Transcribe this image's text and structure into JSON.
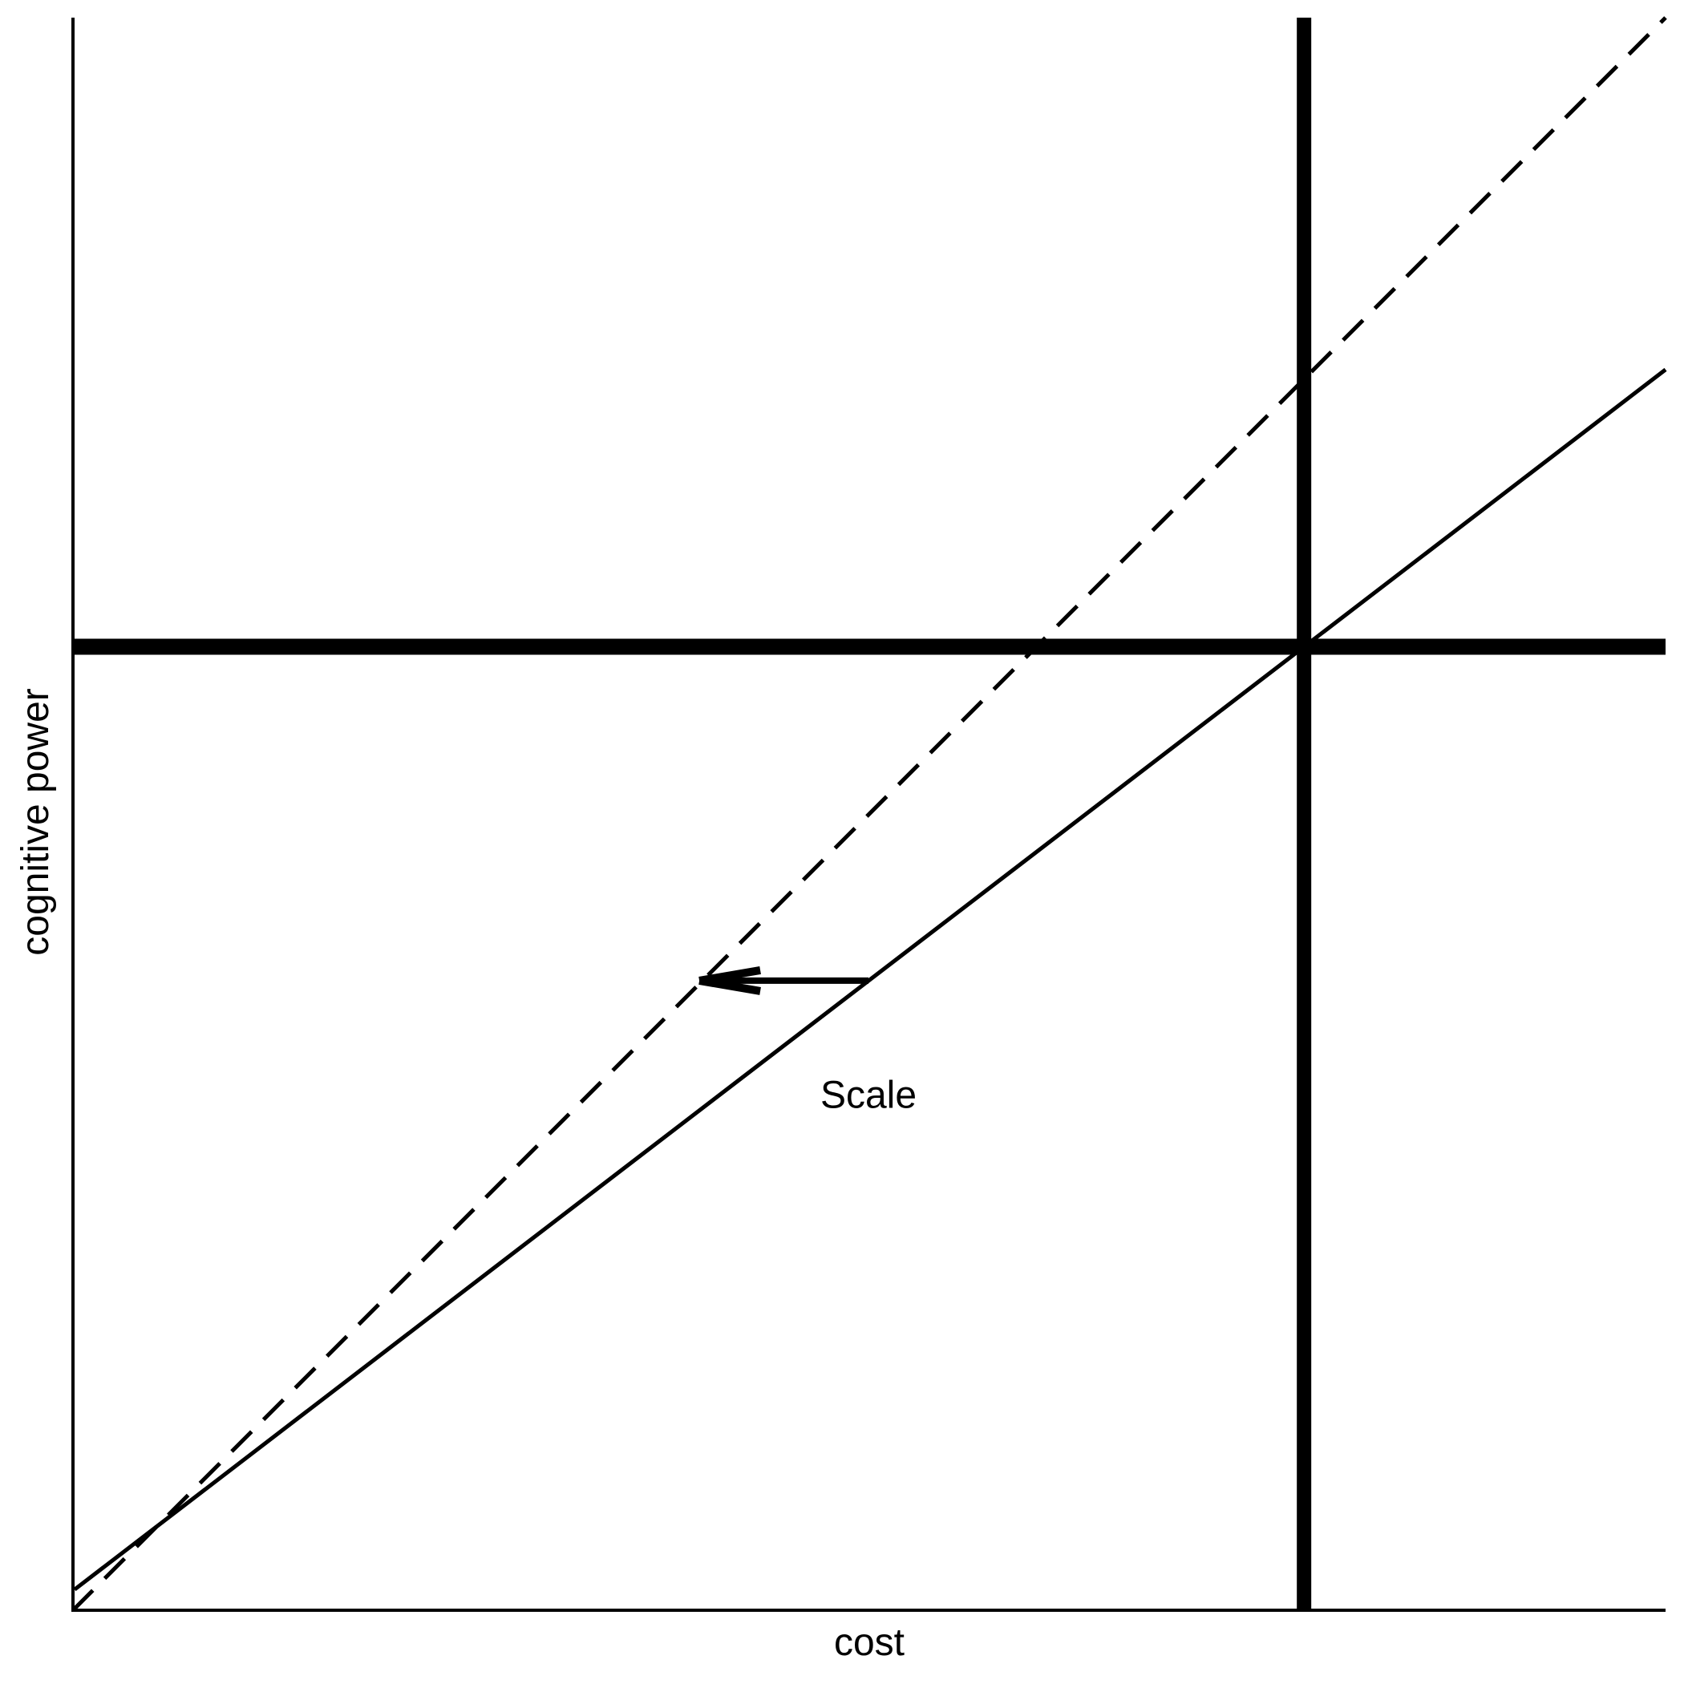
{
  "figure": {
    "background": "#ffffff",
    "ink": "#000000"
  },
  "chart_data": {
    "type": "line",
    "title": "",
    "xlabel": "cost",
    "ylabel": "cognitive power",
    "x_range": [
      0,
      1
    ],
    "y_range": [
      0,
      1
    ],
    "ticks": "none",
    "grid": false,
    "legend": "none",
    "axes": {
      "x_axis_visible": true,
      "y_axis_visible": true,
      "axis_stroke_width": 4
    },
    "series": [
      {
        "name": "solid-diagonal",
        "style": "solid",
        "stroke_width": 5,
        "points": [
          [
            0.001,
            0.013
          ],
          [
            1.0,
            0.779
          ]
        ]
      },
      {
        "name": "dashed-diagonal",
        "style": "dashed",
        "dash": [
          35,
          21
        ],
        "stroke_width": 5,
        "points": [
          [
            0.0,
            0.0
          ],
          [
            1.0,
            1.0
          ]
        ]
      }
    ],
    "reference_lines": [
      {
        "name": "thick-horizontal-line",
        "orientation": "horizontal",
        "y": 0.605,
        "span": [
          0.0,
          1.0
        ],
        "stroke_width": 20
      },
      {
        "name": "thick-vertical-line",
        "orientation": "vertical",
        "x": 0.773,
        "span": [
          0.0,
          1.0
        ],
        "stroke_width": 18
      }
    ],
    "annotations": [
      {
        "text": "Scale",
        "label_pos": [
          0.4995,
          0.3155
        ],
        "arrow": {
          "from": [
            0.4995,
            0.3953
          ],
          "to": [
            0.3933,
            0.3953
          ],
          "direction": "left",
          "shaft_width": 8,
          "head_length": 76,
          "head_half_width": 13
        }
      }
    ]
  }
}
